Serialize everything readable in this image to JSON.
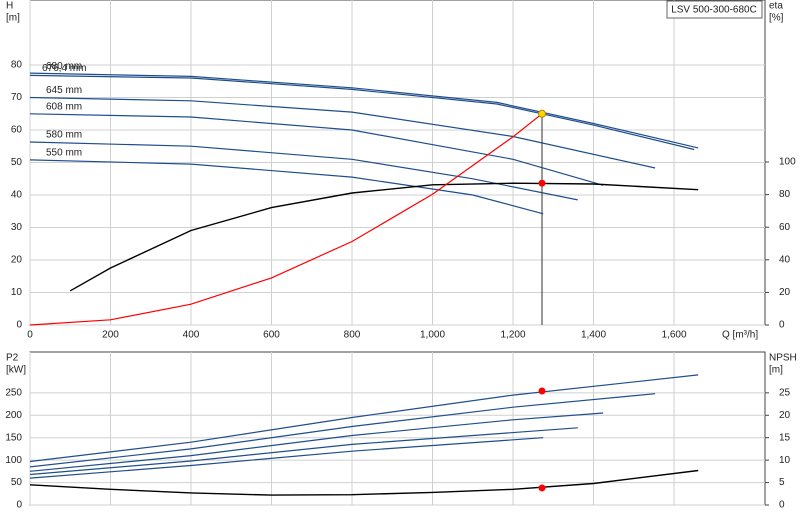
{
  "chart_data": [
    {
      "type": "line",
      "title": "LSV 500-300-680C",
      "y_label": [
        "H",
        "[m]"
      ],
      "y2_label": [
        "eta",
        "[%]"
      ],
      "x_label": "Q [m³/h]",
      "xlim": [
        0,
        1826
      ],
      "xticks": [
        0,
        200,
        400,
        600,
        800,
        {
          "value": 1000,
          "label": "1,000"
        },
        {
          "value": 1200,
          "label": "1,200"
        },
        {
          "value": 1400,
          "label": "1,400"
        },
        {
          "value": 1600,
          "label": "1,600"
        }
      ],
      "ylim": [
        0,
        100
      ],
      "yticks": [
        0,
        10,
        20,
        30,
        40,
        50,
        60,
        70,
        80
      ],
      "y2lim": [
        0,
        199.4
      ],
      "y2ticks": [
        0,
        20,
        40,
        60,
        80,
        100
      ],
      "grid": true,
      "series": [
        {
          "name": "680 mm",
          "color": "#1f4e8c",
          "x": [
            0,
            400,
            800,
            1160,
            1400,
            1660
          ],
          "values": [
            77.5,
            76.5,
            73,
            68.5,
            62,
            54.5
          ]
        },
        {
          "name": "676,4 mm",
          "color": "#1f4e8c",
          "x": [
            0,
            400,
            800,
            1160,
            1400,
            1650
          ],
          "values": [
            76.8,
            76,
            72.5,
            68,
            61.5,
            54
          ]
        },
        {
          "name": "645 mm",
          "color": "#1f4e8c",
          "x": [
            0,
            400,
            800,
            1200,
            1553
          ],
          "values": [
            70,
            69,
            65.5,
            58,
            48.3
          ]
        },
        {
          "name": "608 mm",
          "color": "#1f4e8c",
          "x": [
            0,
            400,
            800,
            1200,
            1424
          ],
          "values": [
            65,
            64,
            60,
            51,
            43
          ]
        },
        {
          "name": "580 mm",
          "color": "#1f4e8c",
          "x": [
            0,
            400,
            800,
            1100,
            1361
          ],
          "values": [
            56.3,
            55,
            51,
            45,
            38.5
          ]
        },
        {
          "name": "550 mm",
          "color": "#1f4e8c",
          "x": [
            0,
            400,
            800,
            1100,
            1275
          ],
          "values": [
            50.8,
            49.5,
            45.5,
            40,
            34.2
          ]
        },
        {
          "color": "#000000",
          "axis": "y2",
          "x": [
            100,
            200,
            400,
            600,
            800,
            1000,
            1200,
            1400,
            1660
          ],
          "values": [
            21,
            35,
            58,
            72,
            81,
            86,
            87,
            86.5,
            83
          ]
        },
        {
          "color": "#ff0000",
          "x": [
            0,
            200,
            400,
            600,
            800,
            1000,
            1200,
            1272
          ],
          "values": [
            0,
            1.6,
            6.4,
            14.5,
            25.7,
            40.2,
            57.9,
            65
          ]
        }
      ],
      "points": [
        {
          "x": 1272,
          "y": 65,
          "color": "#ffd700"
        },
        {
          "x": 1272,
          "y": 87,
          "axis": "y2",
          "color": "#ff0000"
        }
      ]
    },
    {
      "type": "line",
      "y_label": [
        "P2",
        "[kW]"
      ],
      "y2_label": [
        "NPSH",
        "[m]"
      ],
      "xlim": [
        0,
        1826
      ],
      "ylim": [
        0,
        341
      ],
      "yticks": [
        0,
        50,
        100,
        150,
        200,
        250
      ],
      "y2lim": [
        0,
        34.1
      ],
      "y2ticks": [
        0,
        5,
        10,
        15,
        20,
        25
      ],
      "grid": true,
      "series": [
        {
          "color": "#1f4e8c",
          "x": [
            0,
            400,
            800,
            1200,
            1660
          ],
          "values": [
            97,
            140,
            195,
            245,
            290
          ]
        },
        {
          "color": "#1f4e8c",
          "x": [
            0,
            400,
            800,
            1200,
            1553
          ],
          "values": [
            85,
            125,
            175,
            218,
            248
          ]
        },
        {
          "color": "#1f4e8c",
          "x": [
            0,
            400,
            800,
            1200,
            1424
          ],
          "values": [
            75,
            110,
            155,
            190,
            205
          ]
        },
        {
          "color": "#1f4e8c",
          "x": [
            0,
            400,
            800,
            1361
          ],
          "values": [
            68,
            98,
            135,
            172
          ]
        },
        {
          "color": "#1f4e8c",
          "x": [
            0,
            400,
            800,
            1275
          ],
          "values": [
            60,
            88,
            120,
            150
          ]
        },
        {
          "color": "#000000",
          "axis": "y2",
          "x": [
            0,
            200,
            400,
            600,
            800,
            1000,
            1200,
            1400,
            1660
          ],
          "values": [
            4.5,
            3.5,
            2.7,
            2.2,
            2.3,
            2.8,
            3.5,
            4.8,
            7.7
          ]
        }
      ],
      "points": [
        {
          "x": 1272,
          "y": 254,
          "color": "#ff0000"
        },
        {
          "x": 1272,
          "y": 3.8,
          "axis": "y2",
          "color": "#ff0000"
        }
      ]
    }
  ]
}
